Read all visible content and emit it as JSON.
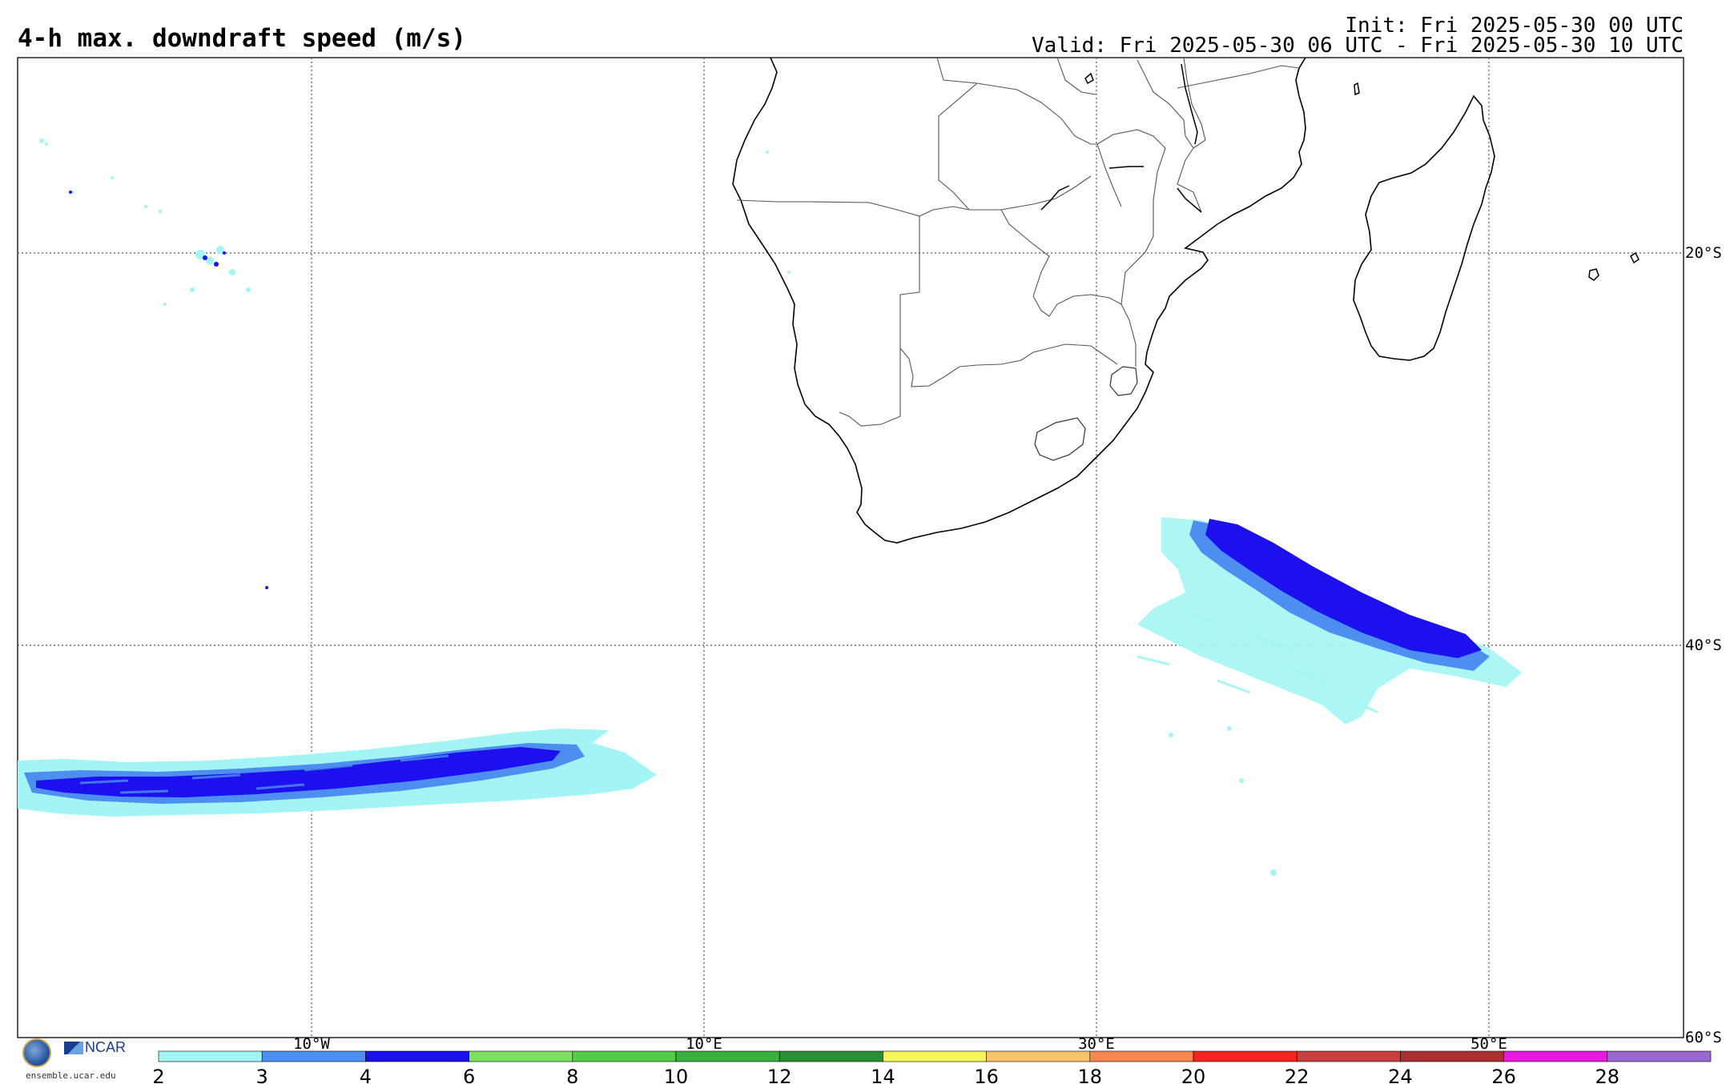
{
  "header": {
    "title": "4-h max. downdraft speed (m/s)",
    "init": "Init: Fri 2025-05-30 00 UTC",
    "valid": "Valid: Fri 2025-05-30 06 UTC - Fri 2025-05-30 10 UTC"
  },
  "map": {
    "lon_range": [
      -25,
      60
    ],
    "lat_range": [
      -60,
      -10
    ],
    "lon_lines": [
      -10,
      10,
      30,
      50
    ],
    "lat_lines": [
      -20,
      -40
    ],
    "lon_labels": [
      "10°W",
      "10°E",
      "30°E",
      "50°E"
    ],
    "lat_labels": [
      "20°S",
      "40°S",
      "60°S"
    ],
    "land_color": "#ffffff",
    "coast_color": "#000000",
    "border_color": "#555555"
  },
  "colorbar": {
    "ticks": [
      "2",
      "3",
      "4",
      "6",
      "8",
      "10",
      "12",
      "14",
      "16",
      "18",
      "20",
      "22",
      "24",
      "26",
      "28"
    ],
    "colors": [
      "#a3f5f5",
      "#4c8ff0",
      "#1c10ee",
      "#7de060",
      "#52cc48",
      "#3ab040",
      "#2a9038",
      "#f7f55a",
      "#f8c26a",
      "#f78850",
      "#f5241e",
      "#c8403e",
      "#a83030",
      "#e81ae0",
      "#9a66d0"
    ]
  },
  "branding": {
    "nsf": "NSF",
    "ncar": "NCAR",
    "site": "ensemble.ucar.edu"
  }
}
